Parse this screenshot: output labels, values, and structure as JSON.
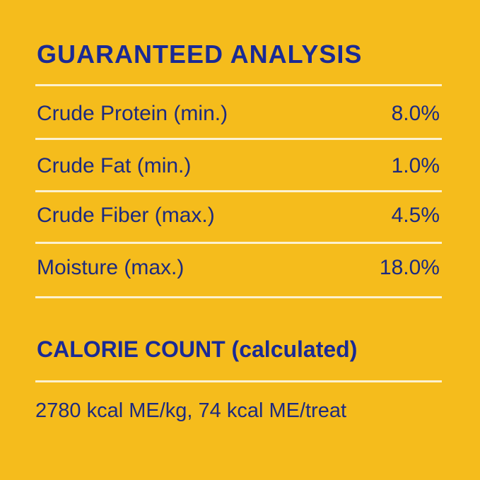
{
  "guaranteed_analysis": {
    "title": "GUARANTEED ANALYSIS",
    "rows": [
      {
        "label": "Crude Protein (min.)",
        "value": "8.0%"
      },
      {
        "label": "Crude Fat (min.)",
        "value": "1.0%"
      },
      {
        "label": "Crude Fiber (max.)",
        "value": "4.5%"
      },
      {
        "label": "Moisture (max.)",
        "value": "18.0%"
      }
    ]
  },
  "calorie_count": {
    "title": "CALORIE COUNT (calculated)",
    "text": "2780 kcal ME/kg, 74 kcal ME/treat"
  },
  "colors": {
    "background": "#F5BC1C",
    "text": "#1C2A80",
    "rules": "#FCF1CF"
  }
}
